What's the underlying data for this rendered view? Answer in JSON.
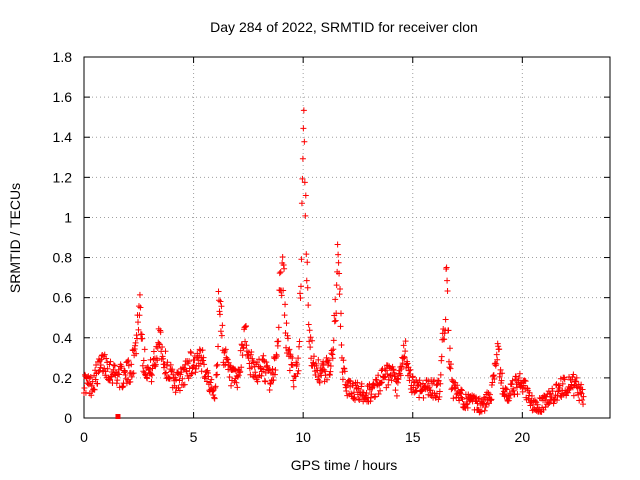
{
  "chart_data": {
    "type": "scatter",
    "title": "Day 284 of 2022, SRMTID for receiver clon",
    "xlabel": "GPS time / hours",
    "ylabel": "SRMTID / TECUs",
    "xlim": [
      0,
      24
    ],
    "ylim": [
      0,
      1.8
    ],
    "x_ticks": [
      0,
      5,
      10,
      15,
      20
    ],
    "x_tick_labels": [
      "0",
      "5",
      "10",
      "15",
      "20"
    ],
    "y_ticks": [
      0,
      0.2,
      0.4,
      0.6,
      0.8,
      1.0,
      1.2,
      1.4,
      1.6,
      1.8
    ],
    "y_tick_labels": [
      "0",
      "0.2",
      "0.4",
      "0.6",
      "0.8",
      "1",
      "1.2",
      "1.4",
      "1.6",
      "1.8"
    ],
    "grid": true,
    "marker": "+",
    "marker_color": "#ff0000",
    "square_marker": {
      "x": 1.55,
      "y": 0.0
    },
    "profile": [
      [
        0.0,
        0.18
      ],
      [
        0.3,
        0.16
      ],
      [
        0.6,
        0.22
      ],
      [
        0.9,
        0.28
      ],
      [
        1.2,
        0.24
      ],
      [
        1.5,
        0.22
      ],
      [
        1.8,
        0.2
      ],
      [
        2.1,
        0.24
      ],
      [
        2.3,
        0.3
      ],
      [
        2.45,
        0.48
      ],
      [
        2.55,
        0.57
      ],
      [
        2.7,
        0.3
      ],
      [
        3.0,
        0.22
      ],
      [
        3.3,
        0.3
      ],
      [
        3.45,
        0.45
      ],
      [
        3.6,
        0.3
      ],
      [
        3.9,
        0.22
      ],
      [
        4.2,
        0.18
      ],
      [
        4.5,
        0.2
      ],
      [
        4.8,
        0.27
      ],
      [
        5.1,
        0.28
      ],
      [
        5.5,
        0.27
      ],
      [
        5.7,
        0.2
      ],
      [
        5.85,
        0.12
      ],
      [
        6.0,
        0.14
      ],
      [
        6.1,
        0.3
      ],
      [
        6.15,
        0.65
      ],
      [
        6.25,
        0.5
      ],
      [
        6.4,
        0.3
      ],
      [
        6.7,
        0.2
      ],
      [
        7.0,
        0.18
      ],
      [
        7.2,
        0.3
      ],
      [
        7.35,
        0.46
      ],
      [
        7.5,
        0.3
      ],
      [
        7.8,
        0.22
      ],
      [
        8.2,
        0.26
      ],
      [
        8.5,
        0.18
      ],
      [
        8.8,
        0.3
      ],
      [
        8.95,
        0.68
      ],
      [
        9.1,
        0.72
      ],
      [
        9.2,
        0.45
      ],
      [
        9.35,
        0.3
      ],
      [
        9.6,
        0.2
      ],
      [
        9.8,
        0.3
      ],
      [
        9.9,
        0.7
      ],
      [
        9.97,
        1.35
      ],
      [
        10.0,
        1.6
      ],
      [
        10.05,
        1.45
      ],
      [
        10.1,
        1.1
      ],
      [
        10.2,
        0.6
      ],
      [
        10.3,
        0.35
      ],
      [
        10.5,
        0.28
      ],
      [
        10.8,
        0.22
      ],
      [
        11.2,
        0.25
      ],
      [
        11.4,
        0.4
      ],
      [
        11.6,
        0.8
      ],
      [
        11.7,
        0.5
      ],
      [
        11.8,
        0.25
      ],
      [
        12.0,
        0.15
      ],
      [
        12.5,
        0.13
      ],
      [
        13.0,
        0.12
      ],
      [
        13.5,
        0.18
      ],
      [
        14.0,
        0.22
      ],
      [
        14.3,
        0.15
      ],
      [
        14.5,
        0.25
      ],
      [
        14.65,
        0.35
      ],
      [
        14.8,
        0.2
      ],
      [
        15.2,
        0.15
      ],
      [
        15.8,
        0.15
      ],
      [
        16.2,
        0.14
      ],
      [
        16.45,
        0.45
      ],
      [
        16.55,
        0.72
      ],
      [
        16.65,
        0.35
      ],
      [
        16.8,
        0.15
      ],
      [
        17.2,
        0.1
      ],
      [
        17.6,
        0.08
      ],
      [
        18.0,
        0.06
      ],
      [
        18.3,
        0.07
      ],
      [
        18.6,
        0.14
      ],
      [
        18.8,
        0.3
      ],
      [
        18.9,
        0.36
      ],
      [
        19.0,
        0.2
      ],
      [
        19.3,
        0.1
      ],
      [
        19.6,
        0.15
      ],
      [
        20.0,
        0.18
      ],
      [
        20.3,
        0.1
      ],
      [
        20.6,
        0.05
      ],
      [
        20.9,
        0.07
      ],
      [
        21.2,
        0.1
      ],
      [
        21.5,
        0.12
      ],
      [
        21.8,
        0.15
      ],
      [
        22.2,
        0.18
      ],
      [
        22.5,
        0.15
      ],
      [
        22.8,
        0.1
      ]
    ]
  }
}
